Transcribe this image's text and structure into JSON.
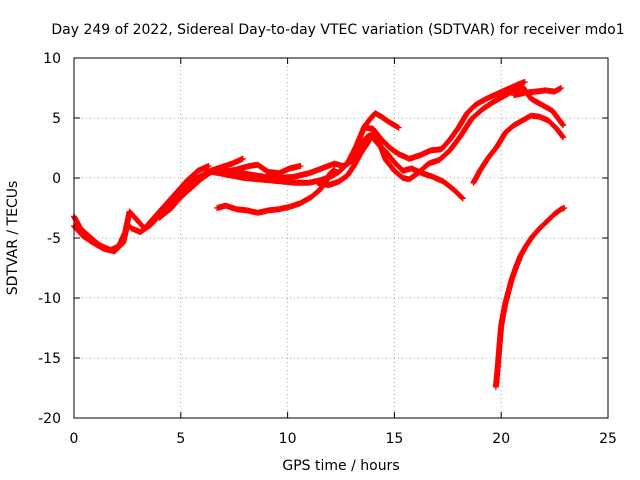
{
  "chart_data": {
    "type": "scatter",
    "title": "Day 249 of 2022, Sidereal Day-to-day VTEC variation (SDTVAR) for receiver mdo1",
    "xlabel": "GPS time / hours",
    "ylabel": "SDTVAR / TECUs",
    "xlim": [
      0,
      25
    ],
    "ylim": [
      -20,
      10
    ],
    "x_ticks": [
      0,
      5,
      10,
      15,
      20,
      25
    ],
    "y_ticks": [
      10,
      5,
      0,
      -5,
      -10,
      -15,
      -20
    ],
    "x_tick_labels": [
      "0",
      "5",
      "10",
      "15",
      "20",
      "25"
    ],
    "y_tick_labels": [
      "10",
      "5",
      "0",
      "-5",
      "-10",
      "-15",
      "-20"
    ],
    "grid": true,
    "grid_style": "dotted",
    "marker": "plus",
    "color": "#ff0000",
    "series": [
      {
        "points": [
          [
            0,
            -3.2
          ],
          [
            0.3,
            -4.2
          ],
          [
            0.8,
            -5.0
          ],
          [
            1.2,
            -5.6
          ],
          [
            1.7,
            -6.0
          ],
          [
            2.1,
            -5.7
          ],
          [
            2.4,
            -4.5
          ],
          [
            2.6,
            -2.8
          ],
          [
            2.9,
            -3.4
          ],
          [
            3.3,
            -4.2
          ],
          [
            3.7,
            -3.4
          ],
          [
            4.2,
            -2.4
          ],
          [
            4.8,
            -1.2
          ],
          [
            5.3,
            -0.2
          ],
          [
            5.8,
            0.6
          ],
          [
            6.3,
            1.0
          ]
        ]
      },
      {
        "points": [
          [
            0,
            -4.0
          ],
          [
            0.4,
            -4.8
          ],
          [
            0.9,
            -5.4
          ],
          [
            1.4,
            -5.9
          ],
          [
            1.9,
            -6.1
          ],
          [
            2.3,
            -5.4
          ],
          [
            2.5,
            -3.9
          ],
          [
            2.7,
            -4.2
          ],
          [
            3.1,
            -4.5
          ],
          [
            3.6,
            -3.9
          ],
          [
            4.1,
            -2.9
          ],
          [
            4.7,
            -1.9
          ],
          [
            5.2,
            -1.0
          ],
          [
            5.6,
            -0.1
          ],
          [
            6.0,
            0.2
          ],
          [
            6.4,
            0.6
          ],
          [
            6.9,
            0.9
          ],
          [
            7.4,
            1.2
          ],
          [
            7.9,
            1.6
          ]
        ]
      },
      {
        "points": [
          [
            4.0,
            -3.3
          ],
          [
            4.5,
            -2.6
          ],
          [
            5.0,
            -1.6
          ],
          [
            5.5,
            -0.8
          ],
          [
            6.0,
            0.0
          ],
          [
            6.5,
            0.6
          ],
          [
            7.0,
            0.5
          ],
          [
            7.6,
            0.7
          ],
          [
            8.2,
            1.0
          ],
          [
            8.6,
            1.1
          ],
          [
            9.1,
            0.5
          ],
          [
            9.6,
            0.4
          ],
          [
            10.1,
            0.8
          ],
          [
            10.6,
            1.0
          ]
        ]
      },
      {
        "points": [
          [
            6.2,
            0.6
          ],
          [
            6.8,
            0.4
          ],
          [
            7.4,
            0.2
          ],
          [
            8.0,
            0.0
          ],
          [
            8.6,
            -0.1
          ],
          [
            9.2,
            -0.2
          ],
          [
            9.8,
            -0.3
          ],
          [
            10.4,
            -0.4
          ],
          [
            11.0,
            -0.4
          ],
          [
            11.5,
            -0.2
          ],
          [
            12.0,
            0.1
          ],
          [
            12.4,
            0.5
          ],
          [
            12.8,
            1.2
          ],
          [
            13.2,
            2.6
          ],
          [
            13.6,
            4.3
          ],
          [
            13.9,
            5.0
          ],
          [
            14.1,
            5.4
          ],
          [
            14.4,
            5.1
          ],
          [
            14.8,
            4.6
          ],
          [
            15.2,
            4.2
          ]
        ]
      },
      {
        "points": [
          [
            6.8,
            0.7
          ],
          [
            7.5,
            0.5
          ],
          [
            8.2,
            0.3
          ],
          [
            8.9,
            0.1
          ],
          [
            9.6,
            0.0
          ],
          [
            10.3,
            0.1
          ],
          [
            11.0,
            0.4
          ],
          [
            11.6,
            0.8
          ],
          [
            12.2,
            1.2
          ],
          [
            12.6,
            1.0
          ],
          [
            13.0,
            1.4
          ],
          [
            13.4,
            2.6
          ],
          [
            13.7,
            3.4
          ],
          [
            13.9,
            3.6
          ],
          [
            14.2,
            2.9
          ],
          [
            14.6,
            2.2
          ],
          [
            15.0,
            1.3
          ],
          [
            15.4,
            0.6
          ],
          [
            15.8,
            0.8
          ],
          [
            16.3,
            0.4
          ],
          [
            16.8,
            0.1
          ],
          [
            17.3,
            -0.3
          ],
          [
            17.8,
            -1.0
          ],
          [
            18.2,
            -1.7
          ]
        ]
      },
      {
        "points": [
          [
            11.4,
            -0.4
          ],
          [
            11.9,
            -0.6
          ],
          [
            12.4,
            -0.3
          ],
          [
            12.8,
            0.2
          ],
          [
            13.1,
            1.0
          ],
          [
            13.4,
            2.0
          ],
          [
            13.7,
            2.8
          ],
          [
            14.0,
            3.7
          ],
          [
            14.3,
            2.9
          ],
          [
            14.6,
            1.5
          ],
          [
            15.0,
            0.6
          ],
          [
            15.4,
            0.0
          ],
          [
            15.7,
            -0.1
          ],
          [
            16.1,
            0.4
          ],
          [
            16.6,
            1.2
          ],
          [
            17.1,
            1.5
          ],
          [
            17.6,
            2.3
          ],
          [
            18.1,
            3.5
          ],
          [
            18.6,
            4.9
          ],
          [
            19.1,
            5.7
          ],
          [
            19.6,
            6.3
          ],
          [
            20.1,
            6.8
          ],
          [
            20.6,
            7.3
          ],
          [
            21.0,
            7.6
          ],
          [
            21.4,
            6.6
          ],
          [
            21.9,
            6.1
          ],
          [
            22.4,
            5.6
          ],
          [
            22.9,
            4.4
          ]
        ]
      },
      {
        "points": [
          [
            13.6,
            4.2
          ],
          [
            14.0,
            4.1
          ],
          [
            14.4,
            3.2
          ],
          [
            14.8,
            2.5
          ],
          [
            15.2,
            2.0
          ],
          [
            15.7,
            1.6
          ],
          [
            16.2,
            1.9
          ],
          [
            16.7,
            2.3
          ],
          [
            17.2,
            2.4
          ],
          [
            17.6,
            3.2
          ],
          [
            18.0,
            4.2
          ],
          [
            18.4,
            5.4
          ],
          [
            18.8,
            6.1
          ],
          [
            19.3,
            6.6
          ],
          [
            19.8,
            7.0
          ],
          [
            20.3,
            7.4
          ],
          [
            20.8,
            7.8
          ],
          [
            21.1,
            8.0
          ]
        ]
      },
      {
        "points": [
          [
            20.6,
            6.9
          ],
          [
            21.1,
            7.1
          ],
          [
            21.6,
            7.2
          ],
          [
            22.1,
            7.3
          ],
          [
            22.5,
            7.2
          ],
          [
            22.8,
            7.5
          ]
        ]
      },
      {
        "points": [
          [
            18.7,
            -0.4
          ],
          [
            19.0,
            0.6
          ],
          [
            19.4,
            1.7
          ],
          [
            19.8,
            2.6
          ],
          [
            20.2,
            3.8
          ],
          [
            20.6,
            4.4
          ],
          [
            21.0,
            4.8
          ],
          [
            21.4,
            5.2
          ],
          [
            21.8,
            5.1
          ],
          [
            22.2,
            4.8
          ],
          [
            22.6,
            4.1
          ],
          [
            22.9,
            3.4
          ]
        ]
      },
      {
        "points": [
          [
            6.7,
            -2.5
          ],
          [
            7.1,
            -2.3
          ],
          [
            7.6,
            -2.6
          ],
          [
            8.1,
            -2.7
          ],
          [
            8.6,
            -2.9
          ],
          [
            9.1,
            -2.7
          ],
          [
            9.6,
            -2.6
          ],
          [
            10.1,
            -2.4
          ],
          [
            10.6,
            -2.1
          ],
          [
            11.1,
            -1.6
          ],
          [
            11.5,
            -1.0
          ],
          [
            11.8,
            -0.3
          ],
          [
            12.0,
            0.4
          ],
          [
            12.2,
            0.7
          ]
        ]
      },
      {
        "points": [
          [
            19.75,
            -17.4
          ],
          [
            19.8,
            -16.5
          ],
          [
            19.85,
            -15.5
          ],
          [
            19.9,
            -14.4
          ],
          [
            19.95,
            -13.3
          ],
          [
            20.0,
            -12.3
          ],
          [
            20.1,
            -11.3
          ],
          [
            20.2,
            -10.4
          ],
          [
            20.35,
            -9.4
          ],
          [
            20.5,
            -8.4
          ],
          [
            20.7,
            -7.4
          ],
          [
            20.9,
            -6.5
          ],
          [
            21.15,
            -5.7
          ],
          [
            21.45,
            -4.9
          ],
          [
            21.8,
            -4.2
          ],
          [
            22.15,
            -3.6
          ],
          [
            22.5,
            -3.0
          ],
          [
            22.8,
            -2.6
          ],
          [
            22.95,
            -2.5
          ]
        ]
      }
    ]
  }
}
